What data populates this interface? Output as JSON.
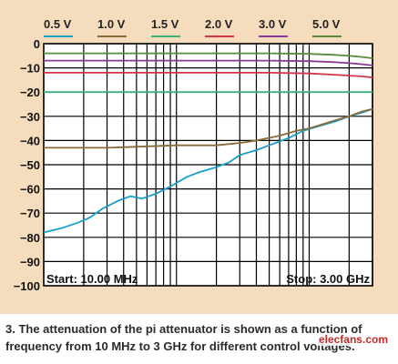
{
  "chart_data": {
    "type": "line",
    "xscale": "log",
    "xlim": [
      10,
      3000
    ],
    "ylim": [
      -100,
      0
    ],
    "yticks": [
      0,
      -10,
      -20,
      -30,
      -40,
      -50,
      -60,
      -70,
      -80,
      -90,
      -100
    ],
    "grid": true,
    "legend_position": "top",
    "start_label": "Start: 10.00 MHz",
    "stop_label": "Stop: 3.00 GHz",
    "series": [
      {
        "name": "0.5 V",
        "color": "#1a9fc9",
        "x": [
          10,
          14,
          18,
          22,
          28,
          36,
          45,
          55,
          70,
          90,
          120,
          150,
          200,
          250,
          300,
          400,
          500,
          700,
          900,
          1200,
          1600,
          2000,
          2500,
          3000
        ],
        "y": [
          -78,
          -76,
          -74,
          -72,
          -68,
          -65,
          -63,
          -64,
          -62,
          -59,
          -55,
          -53,
          -51,
          -49,
          -46,
          -44,
          -42,
          -39,
          -36,
          -34,
          -32,
          -30,
          -28.5,
          -27
        ]
      },
      {
        "name": "1.0 V",
        "color": "#8a6a3a",
        "x": [
          10,
          30,
          100,
          200,
          300,
          400,
          600,
          800,
          1000,
          1500,
          2000,
          2500,
          3000
        ],
        "y": [
          -43,
          -43,
          -42,
          -42,
          -41,
          -40,
          -38,
          -36,
          -35,
          -32,
          -30,
          -28,
          -27
        ]
      },
      {
        "name": "1.5 V",
        "color": "#3ab07a",
        "x": [
          10,
          3000
        ],
        "y": [
          -20,
          -20
        ]
      },
      {
        "name": "2.0 V",
        "color": "#d2344a",
        "x": [
          10,
          100,
          500,
          1000,
          1500,
          2000,
          2500,
          3000
        ],
        "y": [
          -12,
          -12,
          -12,
          -12.3,
          -12.8,
          -13.2,
          -13.5,
          -14
        ]
      },
      {
        "name": "3.0 V",
        "color": "#8a3a96",
        "x": [
          10,
          100,
          500,
          1000,
          1500,
          2000,
          2500,
          3000
        ],
        "y": [
          -7,
          -7,
          -7,
          -7.2,
          -7.6,
          -8,
          -8.5,
          -9
        ]
      },
      {
        "name": "5.0 V",
        "color": "#5a8a3a",
        "x": [
          10,
          100,
          500,
          1000,
          1500,
          2000,
          2500,
          3000
        ],
        "y": [
          -4,
          -4,
          -4,
          -4.2,
          -4.6,
          -5,
          -5.5,
          -6
        ]
      }
    ]
  },
  "caption": "3. The attenuation of the pi attenuator is shown as a function of frequency from 10 MHz to 3 GHz for different control voltages.",
  "watermark": "elecfans.com"
}
